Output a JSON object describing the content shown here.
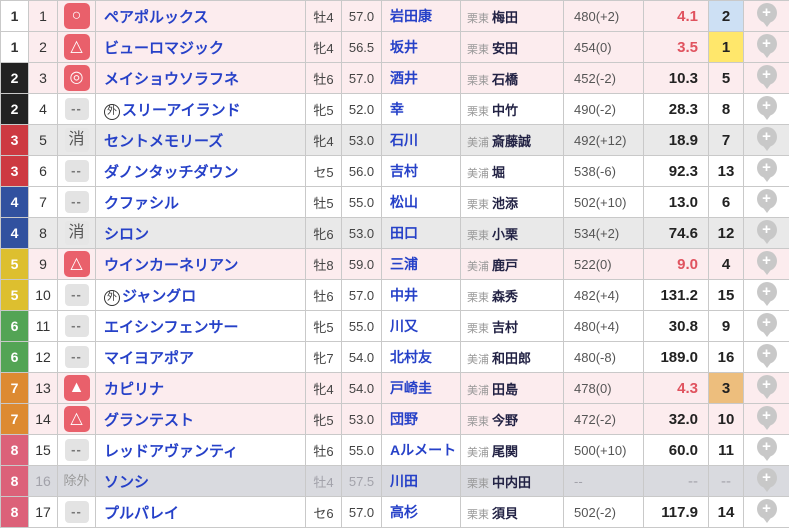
{
  "palette": {
    "link_blue": "#2641c8",
    "odds_hot": "#e0535f",
    "mark_red": "#e9606b",
    "pin_gray": "#c8c8c8",
    "row_bg": {
      "pink": "#fcecee",
      "white": "#ffffff",
      "gray": "#e9e9e9",
      "excluded": "#d9dadf"
    },
    "pop_bg": {
      "1": "#ffe76b",
      "2": "#cde0f4",
      "3": "#edbe7d"
    },
    "frame_colors": {
      "1": {
        "bg": "#ffffff",
        "fg": "#333333"
      },
      "2": {
        "bg": "#222222",
        "fg": "#ffffff"
      },
      "3": {
        "bg": "#cd3a41",
        "fg": "#ffffff"
      },
      "4": {
        "bg": "#31519f",
        "fg": "#ffffff"
      },
      "5": {
        "bg": "#ddbf2f",
        "fg": "#ffffff"
      },
      "6": {
        "bg": "#53a455",
        "fg": "#ffffff"
      },
      "7": {
        "bg": "#dd8a31",
        "fg": "#ffffff"
      },
      "8": {
        "bg": "#dc6179",
        "fg": "#ffffff"
      }
    }
  },
  "rows": [
    {
      "frame": "1",
      "num": "1",
      "mark": {
        "type": "icon",
        "glyph": "○"
      },
      "name_prefix": "",
      "name": "ペアポルックス",
      "sex_age": "牡4",
      "weight": "57.0",
      "jockey": "岩田康",
      "region": "栗東",
      "trainer": "梅田",
      "horse_weight": "480(+2)",
      "odds": "4.1",
      "odds_hot": true,
      "pop": "2",
      "row_style": "pink"
    },
    {
      "frame": "1",
      "num": "2",
      "mark": {
        "type": "icon",
        "glyph": "△"
      },
      "name_prefix": "",
      "name": "ビューロマジック",
      "sex_age": "牝4",
      "weight": "56.5",
      "jockey": "坂井",
      "region": "栗東",
      "trainer": "安田",
      "horse_weight": "454(0)",
      "odds": "3.5",
      "odds_hot": true,
      "pop": "1",
      "row_style": "pink"
    },
    {
      "frame": "2",
      "num": "3",
      "mark": {
        "type": "icon",
        "glyph": "◎"
      },
      "name_prefix": "",
      "name": "メイショウソラフネ",
      "sex_age": "牡6",
      "weight": "57.0",
      "jockey": "酒井",
      "region": "栗東",
      "trainer": "石橋",
      "horse_weight": "452(-2)",
      "odds": "10.3",
      "odds_hot": false,
      "pop": "5",
      "row_style": "pink"
    },
    {
      "frame": "2",
      "num": "4",
      "mark": {
        "type": "dash",
        "glyph": "--"
      },
      "name_prefix": "外",
      "name": "スリーアイランド",
      "sex_age": "牝5",
      "weight": "52.0",
      "jockey": "幸",
      "region": "栗東",
      "trainer": "中竹",
      "horse_weight": "490(-2)",
      "odds": "28.3",
      "odds_hot": false,
      "pop": "8",
      "row_style": "white"
    },
    {
      "frame": "3",
      "num": "5",
      "mark": {
        "type": "kesi",
        "glyph": "消"
      },
      "name_prefix": "",
      "name": "セントメモリーズ",
      "sex_age": "牝4",
      "weight": "53.0",
      "jockey": "石川",
      "region": "美浦",
      "trainer": "斎藤誠",
      "horse_weight": "492(+12)",
      "odds": "18.9",
      "odds_hot": false,
      "pop": "7",
      "row_style": "gray"
    },
    {
      "frame": "3",
      "num": "6",
      "mark": {
        "type": "dash",
        "glyph": "--"
      },
      "name_prefix": "",
      "name": "ダノンタッチダウン",
      "sex_age": "セ5",
      "weight": "56.0",
      "jockey": "吉村",
      "region": "美浦",
      "trainer": "堀",
      "horse_weight": "538(-6)",
      "odds": "92.3",
      "odds_hot": false,
      "pop": "13",
      "row_style": "white"
    },
    {
      "frame": "4",
      "num": "7",
      "mark": {
        "type": "dash",
        "glyph": "--"
      },
      "name_prefix": "",
      "name": "クファシル",
      "sex_age": "牡5",
      "weight": "55.0",
      "jockey": "松山",
      "region": "栗東",
      "trainer": "池添",
      "horse_weight": "502(+10)",
      "odds": "13.0",
      "odds_hot": false,
      "pop": "6",
      "row_style": "white"
    },
    {
      "frame": "4",
      "num": "8",
      "mark": {
        "type": "kesi",
        "glyph": "消"
      },
      "name_prefix": "",
      "name": "シロン",
      "sex_age": "牝6",
      "weight": "53.0",
      "jockey": "田口",
      "region": "栗東",
      "trainer": "小栗",
      "horse_weight": "534(+2)",
      "odds": "74.6",
      "odds_hot": false,
      "pop": "12",
      "row_style": "gray"
    },
    {
      "frame": "5",
      "num": "9",
      "mark": {
        "type": "icon",
        "glyph": "△"
      },
      "name_prefix": "",
      "name": "ウインカーネリアン",
      "sex_age": "牡8",
      "weight": "59.0",
      "jockey": "三浦",
      "region": "美浦",
      "trainer": "鹿戸",
      "horse_weight": "522(0)",
      "odds": "9.0",
      "odds_hot": true,
      "pop": "4",
      "row_style": "pink"
    },
    {
      "frame": "5",
      "num": "10",
      "mark": {
        "type": "dash",
        "glyph": "--"
      },
      "name_prefix": "外",
      "name": "ジャングロ",
      "sex_age": "牡6",
      "weight": "57.0",
      "jockey": "中井",
      "region": "栗東",
      "trainer": "森秀",
      "horse_weight": "482(+4)",
      "odds": "131.2",
      "odds_hot": false,
      "pop": "15",
      "row_style": "white"
    },
    {
      "frame": "6",
      "num": "11",
      "mark": {
        "type": "dash",
        "glyph": "--"
      },
      "name_prefix": "",
      "name": "エイシンフェンサー",
      "sex_age": "牝5",
      "weight": "55.0",
      "jockey": "川又",
      "region": "栗東",
      "trainer": "吉村",
      "horse_weight": "480(+4)",
      "odds": "30.8",
      "odds_hot": false,
      "pop": "9",
      "row_style": "white"
    },
    {
      "frame": "6",
      "num": "12",
      "mark": {
        "type": "dash",
        "glyph": "--"
      },
      "name_prefix": "",
      "name": "マイヨアポア",
      "sex_age": "牝7",
      "weight": "54.0",
      "jockey": "北村友",
      "region": "美浦",
      "trainer": "和田郎",
      "horse_weight": "480(-8)",
      "odds": "189.0",
      "odds_hot": false,
      "pop": "16",
      "row_style": "white"
    },
    {
      "frame": "7",
      "num": "13",
      "mark": {
        "type": "icon",
        "glyph": "▲"
      },
      "name_prefix": "",
      "name": "カピリナ",
      "sex_age": "牝4",
      "weight": "54.0",
      "jockey": "戸崎圭",
      "region": "美浦",
      "trainer": "田島",
      "horse_weight": "478(0)",
      "odds": "4.3",
      "odds_hot": true,
      "pop": "3",
      "row_style": "pink"
    },
    {
      "frame": "7",
      "num": "14",
      "mark": {
        "type": "icon",
        "glyph": "△"
      },
      "name_prefix": "",
      "name": "グランテスト",
      "sex_age": "牝5",
      "weight": "53.0",
      "jockey": "団野",
      "region": "栗東",
      "trainer": "今野",
      "horse_weight": "472(-2)",
      "odds": "32.0",
      "odds_hot": false,
      "pop": "10",
      "row_style": "pink"
    },
    {
      "frame": "8",
      "num": "15",
      "mark": {
        "type": "dash",
        "glyph": "--"
      },
      "name_prefix": "",
      "name": "レッドアヴァンティ",
      "sex_age": "牡6",
      "weight": "55.0",
      "jockey": "Aルメート",
      "region": "美浦",
      "trainer": "尾関",
      "horse_weight": "500(+10)",
      "odds": "60.0",
      "odds_hot": false,
      "pop": "11",
      "row_style": "white"
    },
    {
      "frame": "8",
      "num": "16",
      "mark": {
        "type": "jogai",
        "glyph": "除外"
      },
      "name_prefix": "",
      "name": "ソンシ",
      "sex_age": "牡4",
      "weight": "57.5",
      "jockey": "川田",
      "region": "栗東",
      "trainer": "中内田",
      "horse_weight": "--",
      "odds": "--",
      "odds_hot": false,
      "pop": "--",
      "row_style": "excluded"
    },
    {
      "frame": "8",
      "num": "17",
      "mark": {
        "type": "dash",
        "glyph": "--"
      },
      "name_prefix": "",
      "name": "プルパレイ",
      "sex_age": "セ6",
      "weight": "57.0",
      "jockey": "高杉",
      "region": "栗東",
      "trainer": "須貝",
      "horse_weight": "502(-2)",
      "odds": "117.9",
      "odds_hot": false,
      "pop": "14",
      "row_style": "white"
    }
  ]
}
